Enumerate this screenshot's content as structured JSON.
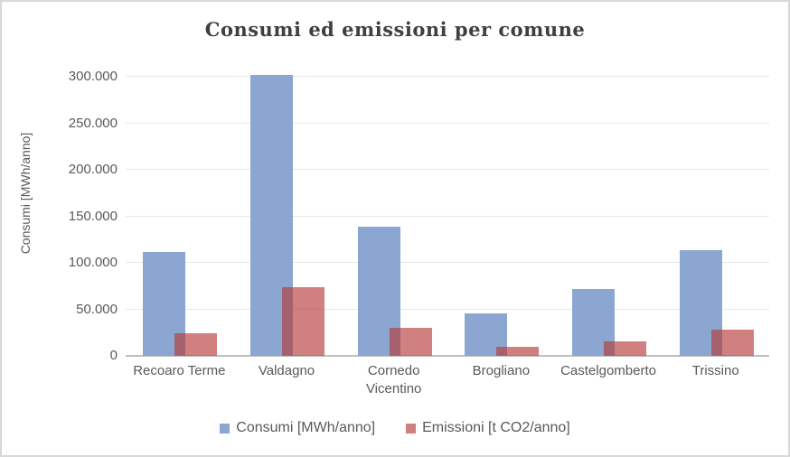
{
  "window": {
    "background": "#FFFFFF",
    "border_color": "#D8D8D8"
  },
  "chart_data": {
    "type": "bar",
    "title": "Consumi ed emissioni per comune",
    "ylabel": "Consumi [MWh/anno]",
    "xlabel": "",
    "categories": [
      "Recoaro Terme",
      "Valdagno",
      "Cornedo Vicentino",
      "Brogliano",
      "Castelgomberto",
      "Trissino"
    ],
    "series": [
      {
        "name": "Consumi [MWh/anno]",
        "color": "#8BA6D0",
        "values": [
          112000,
          302000,
          139000,
          45500,
          72000,
          113500
        ]
      },
      {
        "name": "Emissioni [t CO2/anno]",
        "color": "rgba(181,60,58,0.65)",
        "values": [
          24000,
          73500,
          30500,
          9500,
          15500,
          28000
        ]
      }
    ],
    "ylim": [
      0,
      300000
    ],
    "ytick_step": 50000,
    "yticks": [
      {
        "value": 0,
        "label": "0"
      },
      {
        "value": 50000,
        "label": "50.000"
      },
      {
        "value": 100000,
        "label": "100.000"
      },
      {
        "value": 150000,
        "label": "150.000"
      },
      {
        "value": 200000,
        "label": "200.000"
      },
      {
        "value": 250000,
        "label": "250.000"
      },
      {
        "value": 300000,
        "label": "300.000"
      }
    ],
    "grid": true,
    "legend_position": "bottom",
    "style": {
      "title_color": "#3F3F3F",
      "axis_text_color": "#595959",
      "gridline_color": "#E8E8E8",
      "axis_line_color": "#BFBFBF"
    }
  }
}
